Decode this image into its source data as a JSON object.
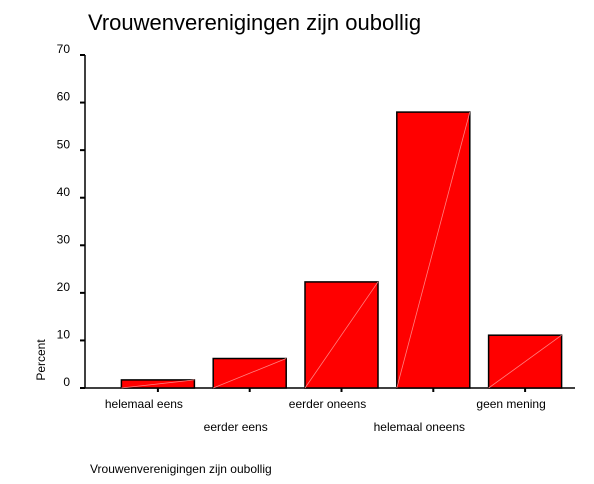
{
  "chart_data": {
    "type": "bar",
    "title": "Vrouwenverenigingen zijn oubollig",
    "x_label": "Vrouwenverenigingen zijn oubollig",
    "y_label": "Percent",
    "categories": [
      "helemaal eens",
      "eerder eens",
      "eerder oneens",
      "helemaal oneens",
      "geen mening"
    ],
    "values": [
      1.7,
      6.2,
      22.3,
      58.0,
      11.1
    ],
    "color": "#ff0000",
    "ylim": [
      0,
      70
    ],
    "yticks": [
      0,
      10,
      20,
      30,
      40,
      50,
      60,
      70
    ],
    "grid": false
  }
}
